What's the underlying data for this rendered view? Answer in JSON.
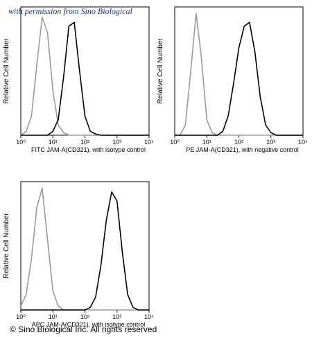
{
  "watermark": "with permission from Sino Biological",
  "footer": "© Sino Biological Inc. All rights reserved",
  "chart_data": [
    {
      "type": "line",
      "xscale": "log",
      "xlabel": "FITC  JAM-A(CD321),  with isotype control",
      "ylabel": "Relative Cell Number",
      "xlim": [
        1,
        10000
      ],
      "ylim": [
        0,
        100
      ],
      "xticks": [
        {
          "value": 1,
          "label": "10⁰"
        },
        {
          "value": 10,
          "label": "10¹"
        },
        {
          "value": 100,
          "label": "10²"
        },
        {
          "value": 1000,
          "label": "10³"
        },
        {
          "value": 10000,
          "label": "10⁴"
        }
      ],
      "x": [
        1,
        1.468,
        2.154,
        3.162,
        4.642,
        6.813,
        10,
        14.68,
        21.54,
        31.62,
        46.42,
        68.13,
        100,
        146.8,
        215.4,
        316.2,
        464.2,
        681.3,
        1000,
        1468,
        2154,
        3162,
        4642,
        6813,
        10000
      ],
      "series": [
        {
          "color": "#9a9a9a",
          "values": [
            0,
            3,
            15,
            55,
            92,
            80,
            35,
            8,
            2,
            0,
            0,
            0,
            0,
            0,
            0,
            0,
            0,
            0,
            0,
            0,
            0,
            0,
            0,
            0,
            0
          ]
        },
        {
          "color": "#000000",
          "values": [
            0,
            0,
            0,
            0,
            0,
            0,
            3,
            12,
            45,
            85,
            88,
            50,
            15,
            3,
            1,
            0,
            0,
            0,
            0,
            0,
            0,
            0,
            0,
            0,
            0
          ]
        }
      ]
    },
    {
      "type": "line",
      "xscale": "log",
      "xlabel": "PE  JAM-A(CD321),  with negative control",
      "ylabel": "Relative Cell Number",
      "xlim": [
        1,
        10000
      ],
      "ylim": [
        0,
        100
      ],
      "xticks": [
        {
          "value": 1,
          "label": "10⁰"
        },
        {
          "value": 10,
          "label": "10¹"
        },
        {
          "value": 100,
          "label": "10²"
        },
        {
          "value": 1000,
          "label": "10³"
        },
        {
          "value": 10000,
          "label": "10⁴"
        }
      ],
      "x": [
        1,
        1.468,
        2.154,
        3.162,
        4.642,
        6.813,
        10,
        14.68,
        21.54,
        31.62,
        46.42,
        68.13,
        100,
        146.8,
        215.4,
        316.2,
        464.2,
        681.3,
        1000,
        1468,
        2154,
        3162,
        4642,
        6813,
        10000
      ],
      "series": [
        {
          "color": "#9a9a9a",
          "values": [
            0,
            0,
            8,
            50,
            95,
            60,
            12,
            2,
            0,
            0,
            0,
            0,
            0,
            0,
            0,
            0,
            0,
            0,
            0,
            0,
            0,
            0,
            0,
            0,
            0
          ]
        },
        {
          "color": "#000000",
          "values": [
            0,
            0,
            0,
            0,
            0,
            0,
            0,
            0,
            0,
            3,
            15,
            40,
            68,
            85,
            88,
            65,
            30,
            8,
            2,
            0,
            0,
            0,
            0,
            0,
            0
          ]
        }
      ]
    },
    {
      "type": "line",
      "xscale": "log",
      "xlabel": "APC  JAM-A(CD321),  with isotype control",
      "ylabel": "Relative Cell Number",
      "xlim": [
        1,
        10000
      ],
      "ylim": [
        0,
        100
      ],
      "xticks": [
        {
          "value": 1,
          "label": "10⁰"
        },
        {
          "value": 10,
          "label": "10¹"
        },
        {
          "value": 100,
          "label": "10²"
        },
        {
          "value": 1000,
          "label": "10³"
        },
        {
          "value": 10000,
          "label": "10⁴"
        }
      ],
      "x": [
        1,
        1.468,
        2.154,
        3.162,
        4.642,
        6.813,
        10,
        14.68,
        21.54,
        31.62,
        46.42,
        68.13,
        100,
        146.8,
        215.4,
        316.2,
        464.2,
        681.3,
        1000,
        1468,
        2154,
        3162,
        4642,
        6813,
        10000
      ],
      "series": [
        {
          "color": "#9a9a9a",
          "values": [
            3,
            12,
            40,
            80,
            95,
            55,
            15,
            3,
            0,
            0,
            0,
            0,
            0,
            0,
            0,
            0,
            0,
            0,
            0,
            0,
            0,
            0,
            0,
            0,
            0
          ]
        },
        {
          "color": "#000000",
          "values": [
            0,
            0,
            0,
            0,
            0,
            0,
            0,
            0,
            0,
            0,
            0,
            0,
            0,
            2,
            10,
            35,
            70,
            92,
            85,
            45,
            12,
            2,
            0,
            0,
            0
          ]
        }
      ]
    }
  ]
}
